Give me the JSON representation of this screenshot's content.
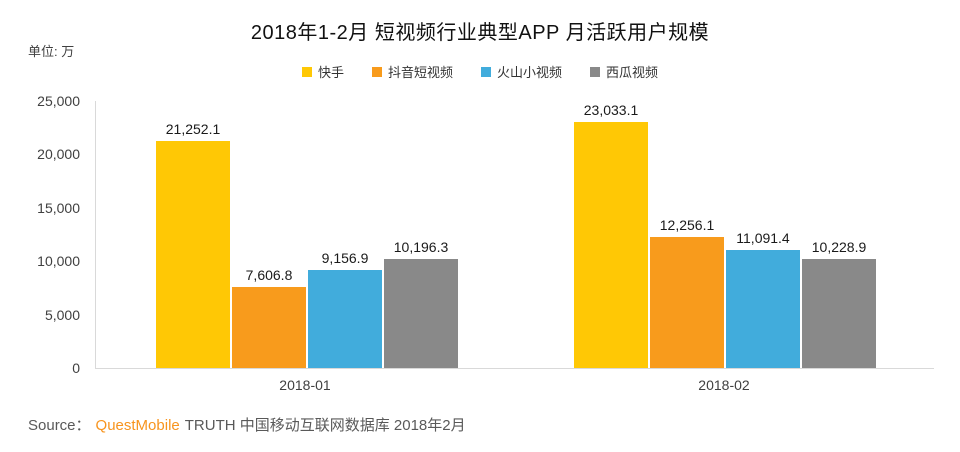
{
  "title": "2018年1-2月 短视频行业典型APP 月活跃用户规模",
  "unit_label": "单位: 万",
  "source": {
    "prefix": "Source：",
    "brand": "QuestMobile",
    "rest": "TRUTH 中国移动互联网数据库 2018年2月"
  },
  "colors": {
    "kuaishou_yellow": "#FFC805",
    "douyin_orange": "#F89B1C",
    "huoshan_blue": "#41ACDC",
    "xigua_gray": "#898989",
    "brand_orange": "#F7941E",
    "axis_line": "#D9D9D9",
    "text_dark": "#1A1A1A"
  },
  "chart_data": {
    "type": "bar",
    "title": "2018年1-2月 短视频行业典型APP 月活跃用户规模",
    "unit": "万",
    "categories": [
      "2018-01",
      "2018-02"
    ],
    "series": [
      {
        "name": "快手",
        "color": "#FFC805",
        "values": [
          21252.1,
          23033.1
        ],
        "labels": [
          "21,252.1",
          "23,033.1"
        ]
      },
      {
        "name": "抖音短视频",
        "color": "#F89B1C",
        "values": [
          7606.8,
          12256.1
        ],
        "labels": [
          "7,606.8",
          "12,256.1"
        ]
      },
      {
        "name": "火山小视频",
        "color": "#41ACDC",
        "values": [
          9156.9,
          11091.4
        ],
        "labels": [
          "9,156.9",
          "11,091.4"
        ]
      },
      {
        "name": "西瓜视频",
        "color": "#898989",
        "values": [
          10196.3,
          10228.9
        ],
        "labels": [
          "10,196.3",
          "10,228.9"
        ]
      }
    ],
    "ylim": [
      0,
      25000
    ],
    "yticks": [
      0,
      5000,
      10000,
      15000,
      20000,
      25000
    ],
    "ytick_labels": [
      "0",
      "5,000",
      "10,000",
      "15,000",
      "20,000",
      "25,000"
    ],
    "grid": false,
    "legend_position": "top-center"
  }
}
